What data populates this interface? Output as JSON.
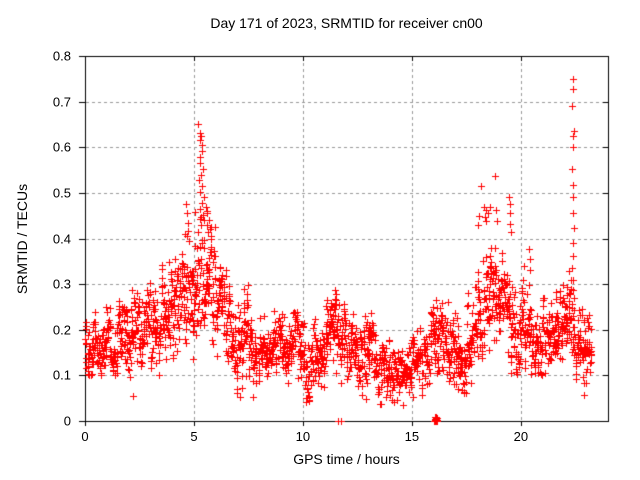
{
  "chart_data": {
    "type": "scatter",
    "title": "Day 171 of 2023, SRMTID for receiver cn00",
    "xlabel": "GPS time / hours",
    "ylabel": "SRMTID / TECUs",
    "xlim": [
      0,
      24
    ],
    "ylim": [
      0,
      0.8
    ],
    "xticks": {
      "values": [
        0,
        5,
        10,
        15,
        20
      ],
      "labels": [
        "0",
        "5",
        "10",
        "15",
        "20"
      ]
    },
    "yticks": {
      "values": [
        0,
        0.1,
        0.2,
        0.3,
        0.4,
        0.5,
        0.6,
        0.7,
        0.8
      ],
      "labels": [
        "0",
        "0.1",
        "0.2",
        "0.3",
        "0.4",
        "0.5",
        "0.6",
        "0.7",
        "0.8"
      ]
    },
    "grid": true,
    "grid_color": "#999999",
    "axis_color": "#000000",
    "background": "#ffffff",
    "legend": "none",
    "marker": {
      "shape": "plus",
      "color": "#ff0000",
      "size": 7
    },
    "series": [
      {
        "name": "SRMTID",
        "cluster_format": [
          "hour_start",
          "hour_end",
          "n_points",
          "y_mean",
          "y_sd",
          "y_min",
          "y_max"
        ],
        "clusters": [
          [
            0.0,
            0.5,
            50,
            0.175,
            0.04,
            0.1,
            0.3
          ],
          [
            0.5,
            1.0,
            48,
            0.16,
            0.035,
            0.09,
            0.26
          ],
          [
            1.0,
            1.5,
            50,
            0.18,
            0.045,
            0.1,
            0.32
          ],
          [
            1.5,
            2.0,
            48,
            0.17,
            0.04,
            0.08,
            0.28
          ],
          [
            2.0,
            2.5,
            50,
            0.18,
            0.045,
            0.05,
            0.3
          ],
          [
            2.5,
            3.0,
            48,
            0.195,
            0.045,
            0.12,
            0.33
          ],
          [
            3.0,
            3.5,
            50,
            0.2,
            0.05,
            0.1,
            0.33
          ],
          [
            3.5,
            4.0,
            50,
            0.215,
            0.05,
            0.12,
            0.35
          ],
          [
            4.0,
            4.5,
            50,
            0.235,
            0.055,
            0.13,
            0.37
          ],
          [
            4.5,
            5.0,
            50,
            0.25,
            0.06,
            0.12,
            0.42
          ],
          [
            5.0,
            5.5,
            52,
            0.3,
            0.085,
            0.15,
            0.58
          ],
          [
            5.5,
            6.0,
            50,
            0.3,
            0.07,
            0.15,
            0.5
          ],
          [
            6.0,
            6.5,
            48,
            0.25,
            0.06,
            0.1,
            0.4
          ],
          [
            6.5,
            7.0,
            48,
            0.2,
            0.05,
            0.06,
            0.33
          ],
          [
            7.0,
            7.5,
            48,
            0.17,
            0.05,
            0.05,
            0.3
          ],
          [
            7.5,
            8.0,
            46,
            0.15,
            0.04,
            0.05,
            0.25
          ],
          [
            8.0,
            8.5,
            48,
            0.155,
            0.04,
            0.07,
            0.25
          ],
          [
            8.5,
            9.0,
            48,
            0.165,
            0.042,
            0.08,
            0.27
          ],
          [
            9.0,
            9.5,
            48,
            0.16,
            0.042,
            0.07,
            0.26
          ],
          [
            9.5,
            10.0,
            46,
            0.15,
            0.04,
            0.06,
            0.24
          ],
          [
            10.0,
            10.5,
            46,
            0.13,
            0.045,
            0.04,
            0.22
          ],
          [
            10.5,
            11.0,
            48,
            0.16,
            0.045,
            0.07,
            0.26
          ],
          [
            11.0,
            11.5,
            50,
            0.195,
            0.045,
            0.1,
            0.29
          ],
          [
            11.5,
            12.0,
            50,
            0.19,
            0.045,
            0.08,
            0.28
          ],
          [
            12.0,
            12.5,
            48,
            0.17,
            0.04,
            0.08,
            0.26
          ],
          [
            12.5,
            13.0,
            48,
            0.16,
            0.045,
            0.05,
            0.28
          ],
          [
            13.0,
            13.5,
            46,
            0.14,
            0.045,
            0.04,
            0.24
          ],
          [
            13.5,
            14.0,
            46,
            0.12,
            0.04,
            0.03,
            0.22
          ],
          [
            14.0,
            14.5,
            46,
            0.11,
            0.035,
            0.04,
            0.2
          ],
          [
            14.5,
            15.0,
            46,
            0.105,
            0.032,
            0.03,
            0.18
          ],
          [
            15.0,
            15.5,
            46,
            0.13,
            0.04,
            0.05,
            0.26
          ],
          [
            15.5,
            16.0,
            48,
            0.165,
            0.045,
            0.07,
            0.28
          ],
          [
            16.0,
            16.5,
            50,
            0.195,
            0.048,
            0.1,
            0.31
          ],
          [
            16.5,
            17.0,
            48,
            0.17,
            0.045,
            0.08,
            0.28
          ],
          [
            17.0,
            17.5,
            46,
            0.14,
            0.045,
            0.06,
            0.25
          ],
          [
            17.5,
            18.0,
            46,
            0.155,
            0.05,
            0.06,
            0.3
          ],
          [
            18.0,
            18.5,
            50,
            0.27,
            0.07,
            0.13,
            0.47
          ],
          [
            18.5,
            19.0,
            50,
            0.28,
            0.062,
            0.15,
            0.46
          ],
          [
            19.0,
            19.5,
            48,
            0.24,
            0.052,
            0.14,
            0.4
          ],
          [
            19.5,
            20.0,
            48,
            0.205,
            0.05,
            0.1,
            0.35
          ],
          [
            20.0,
            20.5,
            48,
            0.19,
            0.05,
            0.08,
            0.38
          ],
          [
            20.5,
            21.0,
            48,
            0.18,
            0.045,
            0.1,
            0.3
          ],
          [
            21.0,
            21.5,
            48,
            0.19,
            0.045,
            0.1,
            0.3
          ],
          [
            21.5,
            22.0,
            50,
            0.2,
            0.045,
            0.1,
            0.3
          ],
          [
            22.0,
            22.5,
            50,
            0.2,
            0.05,
            0.1,
            0.33
          ],
          [
            22.5,
            23.0,
            48,
            0.165,
            0.045,
            0.06,
            0.28
          ],
          [
            23.0,
            23.25,
            24,
            0.15,
            0.04,
            0.08,
            0.25
          ]
        ],
        "outlier_points": [
          [
            5.18,
            0.652
          ],
          [
            5.28,
            0.632
          ],
          [
            5.33,
            0.625
          ],
          [
            5.3,
            0.615
          ],
          [
            5.38,
            0.605
          ],
          [
            5.35,
            0.592
          ],
          [
            5.3,
            0.578
          ],
          [
            5.26,
            0.565
          ],
          [
            5.42,
            0.552
          ],
          [
            5.33,
            0.54
          ],
          [
            5.22,
            0.528
          ],
          [
            5.37,
            0.515
          ],
          [
            5.3,
            0.502
          ],
          [
            5.44,
            0.49
          ],
          [
            5.35,
            0.478
          ],
          [
            5.28,
            0.465
          ],
          [
            5.4,
            0.452
          ],
          [
            5.48,
            0.44
          ],
          [
            5.55,
            0.47
          ],
          [
            5.6,
            0.455
          ],
          [
            5.58,
            0.43
          ],
          [
            5.65,
            0.415
          ],
          [
            5.62,
            0.46
          ],
          [
            5.68,
            0.44
          ],
          [
            5.75,
            0.42
          ],
          [
            5.8,
            0.4
          ],
          [
            4.62,
            0.475
          ],
          [
            4.68,
            0.455
          ],
          [
            4.72,
            0.435
          ],
          [
            4.58,
            0.41
          ],
          [
            4.78,
            0.395
          ],
          [
            18.16,
            0.515
          ],
          [
            18.82,
            0.538
          ],
          [
            18.3,
            0.47
          ],
          [
            18.42,
            0.462
          ],
          [
            18.5,
            0.455
          ],
          [
            18.6,
            0.47
          ],
          [
            18.35,
            0.448
          ],
          [
            18.86,
            0.462
          ],
          [
            18.9,
            0.438
          ],
          [
            18.05,
            0.43
          ],
          [
            18.1,
            0.45
          ],
          [
            19.44,
            0.492
          ],
          [
            19.5,
            0.476
          ],
          [
            19.52,
            0.455
          ],
          [
            19.48,
            0.432
          ],
          [
            19.55,
            0.415
          ],
          [
            20.38,
            0.378
          ],
          [
            20.4,
            0.355
          ],
          [
            20.42,
            0.332
          ],
          [
            22.38,
            0.75
          ],
          [
            22.41,
            0.728
          ],
          [
            22.37,
            0.69
          ],
          [
            22.42,
            0.636
          ],
          [
            22.39,
            0.624
          ],
          [
            22.4,
            0.6
          ],
          [
            22.37,
            0.552
          ],
          [
            22.41,
            0.518
          ],
          [
            22.39,
            0.492
          ],
          [
            22.38,
            0.455
          ],
          [
            22.42,
            0.422
          ],
          [
            22.39,
            0.39
          ],
          [
            22.4,
            0.362
          ],
          [
            22.37,
            0.336
          ],
          [
            22.41,
            0.31
          ],
          [
            22.39,
            0.288
          ],
          [
            2.2,
            0.055
          ],
          [
            7.1,
            0.052
          ],
          [
            10.3,
            0.045
          ],
          [
            12.9,
            0.048
          ],
          [
            13.6,
            0.038
          ],
          [
            14.2,
            0.042
          ],
          [
            14.6,
            0.035
          ],
          [
            17.5,
            0.062
          ],
          [
            22.9,
            0.058
          ]
        ],
        "zero_points": [
          [
            11.63,
            0
          ],
          [
            11.77,
            0
          ],
          [
            16.03,
            0
          ],
          [
            16.05,
            0.004
          ],
          [
            16.07,
            0
          ],
          [
            16.09,
            0.004
          ],
          [
            16.11,
            0
          ],
          [
            16.13,
            0.004
          ],
          [
            16.15,
            0
          ],
          [
            16.17,
            0.002
          ],
          [
            16.06,
            0.002
          ],
          [
            16.1,
            0.006
          ],
          [
            16.14,
            0.006
          ],
          [
            16.08,
            0.008
          ],
          [
            16.12,
            0.008
          ]
        ]
      }
    ]
  }
}
